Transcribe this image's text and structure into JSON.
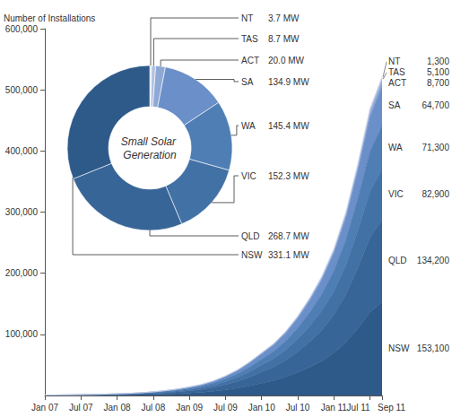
{
  "chart_data": [
    {
      "type": "area",
      "stacked": true,
      "ylabel": "Number of Installations",
      "categories": [
        "Jan 07",
        null,
        null,
        "Jul 07",
        null,
        null,
        "Jan 08",
        null,
        null,
        "Jul 08",
        null,
        null,
        "Jan 09",
        null,
        null,
        "Jul 09",
        null,
        null,
        "Jan 10",
        null,
        null,
        "Jul 10",
        null,
        null,
        "Jan 11",
        null,
        null,
        "Jul 11",
        "Sep 11"
      ],
      "series": [
        {
          "name": "NSW",
          "color": "#2e5a8a",
          "values": [
            170,
            230,
            290,
            380,
            490,
            640,
            810,
            1020,
            1310,
            1740,
            2320,
            3050,
            4060,
            5220,
            6960,
            9280,
            12180,
            15950,
            20300,
            24650,
            30450,
            37700,
            46400,
            56550,
            69600,
            87000,
            110200,
            136300,
            153100
          ],
          "value_labels": [
            null,
            null,
            null,
            null,
            null,
            null,
            null,
            null,
            null,
            null,
            null,
            null,
            null,
            null,
            null,
            null,
            null,
            null,
            null,
            null,
            null,
            null,
            null,
            null,
            null,
            null,
            null,
            null,
            "153,100"
          ]
        },
        {
          "name": "QLD",
          "color": "#386597",
          "values": [
            160,
            210,
            260,
            340,
            440,
            570,
            730,
            910,
            1170,
            1560,
            2080,
            2730,
            3640,
            4680,
            6240,
            8320,
            10920,
            14300,
            18200,
            22100,
            27300,
            33800,
            41600,
            50700,
            62400,
            78000,
            98800,
            122200,
            134200
          ],
          "value_labels": [
            null,
            null,
            null,
            null,
            null,
            null,
            null,
            null,
            null,
            null,
            null,
            null,
            null,
            null,
            null,
            null,
            null,
            null,
            null,
            null,
            null,
            null,
            null,
            null,
            null,
            null,
            null,
            null,
            "134,200"
          ]
        },
        {
          "name": "VIC",
          "color": "#4271a6",
          "values": [
            100,
            130,
            160,
            210,
            270,
            350,
            450,
            560,
            720,
            960,
            1280,
            1680,
            2240,
            2880,
            3840,
            5120,
            6720,
            8800,
            11200,
            13600,
            16800,
            20800,
            25600,
            31200,
            38400,
            48000,
            60800,
            75200,
            82900
          ],
          "value_labels": [
            null,
            null,
            null,
            null,
            null,
            null,
            null,
            null,
            null,
            null,
            null,
            null,
            null,
            null,
            null,
            null,
            null,
            null,
            null,
            null,
            null,
            null,
            null,
            null,
            null,
            null,
            null,
            null,
            "82,900"
          ]
        },
        {
          "name": "WA",
          "color": "#4f7eb5",
          "values": [
            80,
            110,
            140,
            180,
            240,
            310,
            390,
            490,
            630,
            840,
            1120,
            1470,
            1960,
            2520,
            3360,
            4480,
            5880,
            7700,
            9800,
            11900,
            14700,
            18200,
            22400,
            27300,
            33600,
            42000,
            53200,
            65800,
            71300
          ],
          "value_labels": [
            null,
            null,
            null,
            null,
            null,
            null,
            null,
            null,
            null,
            null,
            null,
            null,
            null,
            null,
            null,
            null,
            null,
            null,
            null,
            null,
            null,
            null,
            null,
            null,
            null,
            null,
            null,
            null,
            "71,300"
          ]
        },
        {
          "name": "SA",
          "color": "#6b8fc9",
          "values": [
            70,
            100,
            120,
            160,
            200,
            260,
            340,
            420,
            540,
            720,
            960,
            1260,
            1680,
            2160,
            2880,
            3840,
            5040,
            6600,
            8400,
            10200,
            12600,
            15600,
            19200,
            23400,
            28800,
            36000,
            45600,
            56400,
            64700
          ],
          "value_labels": [
            null,
            null,
            null,
            null,
            null,
            null,
            null,
            null,
            null,
            null,
            null,
            null,
            null,
            null,
            null,
            null,
            null,
            null,
            null,
            null,
            null,
            null,
            null,
            null,
            null,
            null,
            null,
            null,
            "64,700"
          ]
        },
        {
          "name": "ACT",
          "color": "#8fa9d6",
          "values": [
            10,
            10,
            20,
            20,
            30,
            40,
            50,
            60,
            80,
            100,
            140,
            180,
            240,
            310,
            410,
            540,
            710,
            940,
            1190,
            1450,
            1790,
            2210,
            2720,
            3320,
            4080,
            5100,
            6460,
            7990,
            8700
          ],
          "value_labels": [
            null,
            null,
            null,
            null,
            null,
            null,
            null,
            null,
            null,
            null,
            null,
            null,
            null,
            null,
            null,
            null,
            null,
            null,
            null,
            null,
            null,
            null,
            null,
            null,
            null,
            null,
            null,
            null,
            "8,700"
          ]
        },
        {
          "name": "TAS",
          "color": "#b3c2e1",
          "values": [
            10,
            10,
            10,
            10,
            20,
            20,
            30,
            40,
            50,
            60,
            80,
            110,
            140,
            180,
            240,
            320,
            420,
            550,
            700,
            850,
            1050,
            1300,
            1600,
            1950,
            2400,
            3000,
            3800,
            4700,
            5100
          ],
          "value_labels": [
            null,
            null,
            null,
            null,
            null,
            null,
            null,
            null,
            null,
            null,
            null,
            null,
            null,
            null,
            null,
            null,
            null,
            null,
            null,
            null,
            null,
            null,
            null,
            null,
            null,
            null,
            null,
            null,
            "5,100"
          ]
        },
        {
          "name": "NT",
          "color": "#d6deee",
          "values": [
            0,
            0,
            0,
            0,
            10,
            10,
            10,
            10,
            10,
            20,
            20,
            30,
            40,
            50,
            70,
            100,
            130,
            170,
            210,
            260,
            320,
            390,
            480,
            590,
            720,
            900,
            1140,
            1200,
            1300
          ],
          "value_labels": [
            null,
            null,
            null,
            null,
            null,
            null,
            null,
            null,
            null,
            null,
            null,
            null,
            null,
            null,
            null,
            null,
            null,
            null,
            null,
            null,
            null,
            null,
            null,
            null,
            null,
            null,
            null,
            null,
            "1,300"
          ]
        }
      ],
      "ylim": [
        0,
        600000
      ],
      "yticks": [
        {
          "value": 100000,
          "label": "100,000"
        },
        {
          "value": 200000,
          "label": "200,000"
        },
        {
          "value": 300000,
          "label": "300,000"
        },
        {
          "value": 400000,
          "label": "400,000"
        },
        {
          "value": 500000,
          "label": "500,000"
        },
        {
          "value": 600000,
          "label": "600,000"
        }
      ],
      "grid": false
    },
    {
      "type": "pie",
      "title": "Small Solar Generation",
      "categories": [
        "NT",
        "TAS",
        "ACT",
        "SA",
        "WA",
        "VIC",
        "QLD",
        "NSW"
      ],
      "values": [
        3.7,
        8.7,
        20.0,
        134.9,
        145.4,
        152.3,
        268.7,
        331.1
      ],
      "value_labels": [
        "3.7 MW",
        "8.7 MW",
        "20.0 MW",
        "134.9 MW",
        "145.4 MW",
        "152.3 MW",
        "268.7 MW",
        "331.1 MW"
      ],
      "colors": [
        "#d6deee",
        "#b3c2e1",
        "#8fa9d6",
        "#6b8fc9",
        "#4f7eb5",
        "#4271a6",
        "#386597",
        "#2e5a8a"
      ]
    }
  ]
}
